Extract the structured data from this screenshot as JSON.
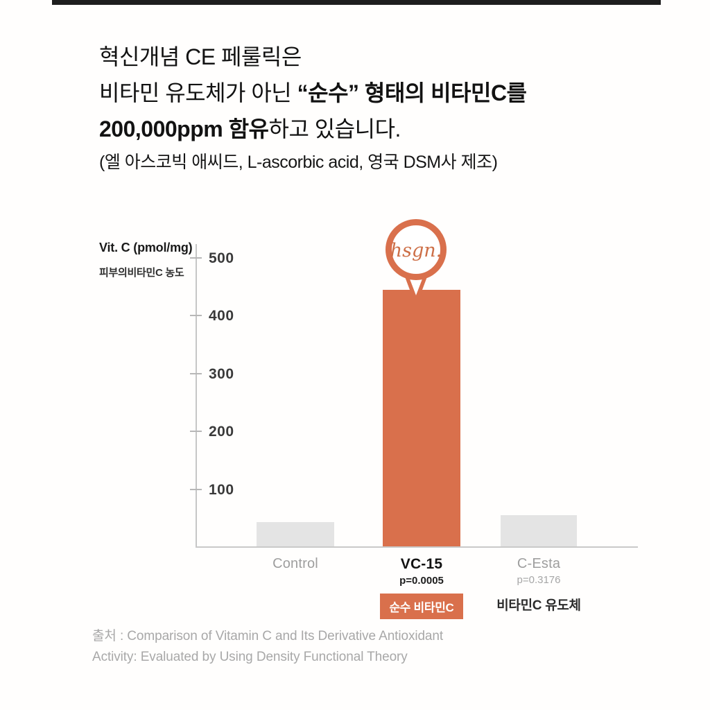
{
  "page": {
    "background": "#ffffff",
    "accent_orange": "#d9704c",
    "bar_gray": "#e4e4e4"
  },
  "header": {
    "line1": "혁신개념 CE 페룰릭은",
    "line2_regular": "비타민 유도체가 아닌 ",
    "line2_bold": "“순수” 형태의 비타민C를",
    "line3_bold": "200,000ppm 함유",
    "line3_regular": "하고 있습니다.",
    "line4": "(엘 아스코빅 애씨드, L-ascorbic acid, 영국 DSM사 제조)"
  },
  "chart_data": {
    "type": "bar",
    "title": "Vit. C (pmol/mg)",
    "subtitle": "피부의비타민C 농도",
    "ylabel": "Vit. C (pmol/mg)",
    "categories": [
      "Control",
      "VC-15",
      "C-Esta"
    ],
    "values": [
      43,
      445,
      55
    ],
    "p_values": [
      "",
      "p=0.0005",
      "p=0.3176"
    ],
    "footnotes": [
      "",
      "순수 비타민C",
      "비타민C 유도체"
    ],
    "bar_colors": [
      "#e4e4e4",
      "#d9704c",
      "#e4e4e4"
    ],
    "highlight_index": 1,
    "y_ticks": [
      100,
      200,
      300,
      400,
      500
    ],
    "ylim": [
      0,
      520
    ],
    "grid": "off",
    "legend": "none",
    "logo_label": "hsgn."
  },
  "source": {
    "line1": "출처 : Comparison of Vitamin C and Its Derivative Antioxidant",
    "line2": "Activity: Evaluated by Using Density Functional Theory"
  }
}
